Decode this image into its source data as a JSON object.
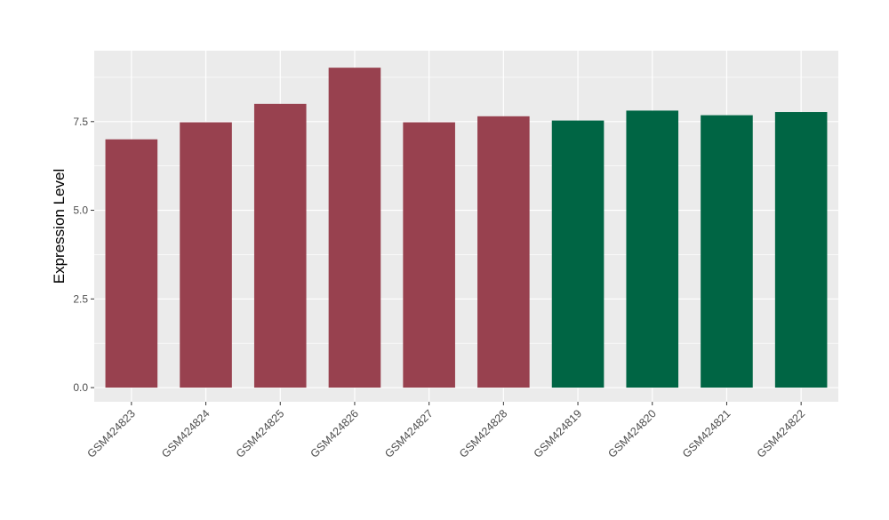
{
  "chart_data": {
    "type": "bar",
    "title": "",
    "xlabel": "",
    "ylabel": "Expression Level",
    "categories": [
      "GSM424823",
      "GSM424824",
      "GSM424825",
      "GSM424826",
      "GSM424827",
      "GSM424828",
      "GSM424819",
      "GSM424820",
      "GSM424821",
      "GSM424822"
    ],
    "values": [
      7.0,
      7.48,
      8.0,
      9.02,
      7.48,
      7.65,
      7.53,
      7.81,
      7.68,
      7.77
    ],
    "colors": [
      "#98414f",
      "#98414f",
      "#98414f",
      "#98414f",
      "#98414f",
      "#98414f",
      "#006544",
      "#006544",
      "#006544",
      "#006544"
    ],
    "ylim": [
      -0.4,
      9.5
    ],
    "yticks": [
      0.0,
      2.5,
      5.0,
      7.5
    ],
    "ytick_labels": [
      "0.0",
      "2.5",
      "5.0",
      "7.5"
    ],
    "grid": true,
    "panel_background": "#ebebeb",
    "grid_color": "#ffffff"
  }
}
